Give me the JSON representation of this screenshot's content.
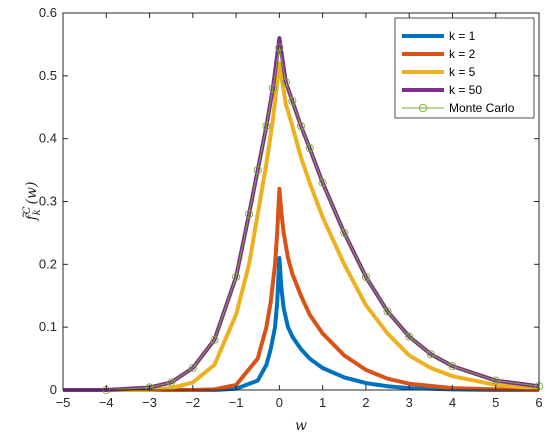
{
  "chart_data": {
    "type": "line",
    "xlabel": "w",
    "ylabel": "f̃",
    "ylabel_super": "C",
    "ylabel_sub": "k",
    "ylabel_arg": "(w)",
    "xlim": [
      -5,
      6
    ],
    "ylim": [
      0,
      0.6
    ],
    "xticks": [
      -5,
      -4,
      -3,
      -2,
      -1,
      0,
      1,
      2,
      3,
      4,
      5,
      6
    ],
    "yticks": [
      0,
      0.1,
      0.2,
      0.3,
      0.4,
      0.5,
      0.6
    ],
    "xtick_labels": [
      "−5",
      "−4",
      "−3",
      "−2",
      "−1",
      "0",
      "1",
      "2",
      "3",
      "4",
      "5",
      "6"
    ],
    "ytick_labels": [
      "0",
      "0.1",
      "0.2",
      "0.3",
      "0.4",
      "0.5",
      "0.6"
    ],
    "grid": false,
    "legend_position": "top-right",
    "series": [
      {
        "name": "k = 1",
        "color": "#0072BD",
        "style": "line",
        "x": [
          -5,
          -1.5,
          -1.0,
          -0.5,
          -0.3,
          -0.2,
          -0.1,
          -0.05,
          0,
          0.05,
          0.1,
          0.2,
          0.3,
          0.5,
          0.7,
          1.0,
          1.5,
          2.0,
          2.5,
          3.0,
          4.0,
          5.0,
          6.0
        ],
        "y": [
          0,
          0.0,
          0.002,
          0.015,
          0.04,
          0.065,
          0.1,
          0.14,
          0.21,
          0.16,
          0.13,
          0.1,
          0.085,
          0.065,
          0.05,
          0.035,
          0.02,
          0.011,
          0.006,
          0.003,
          0.001,
          0.0,
          0.0
        ]
      },
      {
        "name": "k = 2",
        "color": "#D95319",
        "style": "line",
        "x": [
          -5,
          -2.0,
          -1.5,
          -1.0,
          -0.5,
          -0.3,
          -0.2,
          -0.1,
          -0.05,
          0,
          0.05,
          0.1,
          0.2,
          0.3,
          0.5,
          0.7,
          1.0,
          1.5,
          2.0,
          2.5,
          3.0,
          4.0,
          5.0,
          6.0
        ],
        "y": [
          0,
          0.0,
          0.001,
          0.008,
          0.05,
          0.1,
          0.14,
          0.2,
          0.25,
          0.32,
          0.28,
          0.25,
          0.21,
          0.185,
          0.15,
          0.12,
          0.09,
          0.055,
          0.032,
          0.018,
          0.01,
          0.003,
          0.001,
          0.0
        ]
      },
      {
        "name": "k = 5",
        "color": "#EDB120",
        "style": "line",
        "x": [
          -5,
          -3.0,
          -2.5,
          -2.0,
          -1.5,
          -1.0,
          -0.7,
          -0.5,
          -0.3,
          -0.15,
          0,
          0.15,
          0.3,
          0.5,
          0.7,
          1.0,
          1.5,
          2.0,
          2.5,
          3.0,
          3.5,
          4.0,
          5.0,
          6.0
        ],
        "y": [
          0,
          0.0,
          0.003,
          0.012,
          0.04,
          0.12,
          0.2,
          0.28,
          0.36,
          0.43,
          0.52,
          0.455,
          0.42,
          0.37,
          0.33,
          0.275,
          0.2,
          0.135,
          0.09,
          0.055,
          0.035,
          0.022,
          0.008,
          0.002
        ]
      },
      {
        "name": "k = 50",
        "color": "#7E2F8E",
        "style": "line",
        "x": [
          -5,
          -4.0,
          -3.0,
          -2.5,
          -2.0,
          -1.5,
          -1.0,
          -0.7,
          -0.5,
          -0.3,
          -0.15,
          0,
          0.15,
          0.3,
          0.5,
          0.7,
          1.0,
          1.5,
          2.0,
          2.5,
          3.0,
          3.5,
          4.0,
          5.0,
          6.0
        ],
        "y": [
          0,
          0.0,
          0.004,
          0.012,
          0.035,
          0.08,
          0.18,
          0.28,
          0.35,
          0.42,
          0.48,
          0.56,
          0.49,
          0.46,
          0.42,
          0.385,
          0.33,
          0.25,
          0.18,
          0.125,
          0.085,
          0.057,
          0.038,
          0.015,
          0.006
        ]
      },
      {
        "name": "Monte Carlo",
        "color": "#77AC30",
        "style": "line-markers",
        "x": [
          -4.0,
          -3.0,
          -2.5,
          -2.0,
          -1.5,
          -1.0,
          -0.7,
          -0.5,
          -0.3,
          -0.15,
          0,
          0.15,
          0.3,
          0.5,
          0.7,
          1.0,
          1.5,
          2.0,
          2.5,
          3.0,
          3.5,
          4.0,
          5.0,
          6.0
        ],
        "y": [
          0.0,
          0.004,
          0.012,
          0.035,
          0.08,
          0.18,
          0.28,
          0.35,
          0.42,
          0.48,
          0.545,
          0.49,
          0.46,
          0.42,
          0.385,
          0.33,
          0.25,
          0.18,
          0.125,
          0.085,
          0.057,
          0.038,
          0.015,
          0.006
        ]
      }
    ]
  }
}
